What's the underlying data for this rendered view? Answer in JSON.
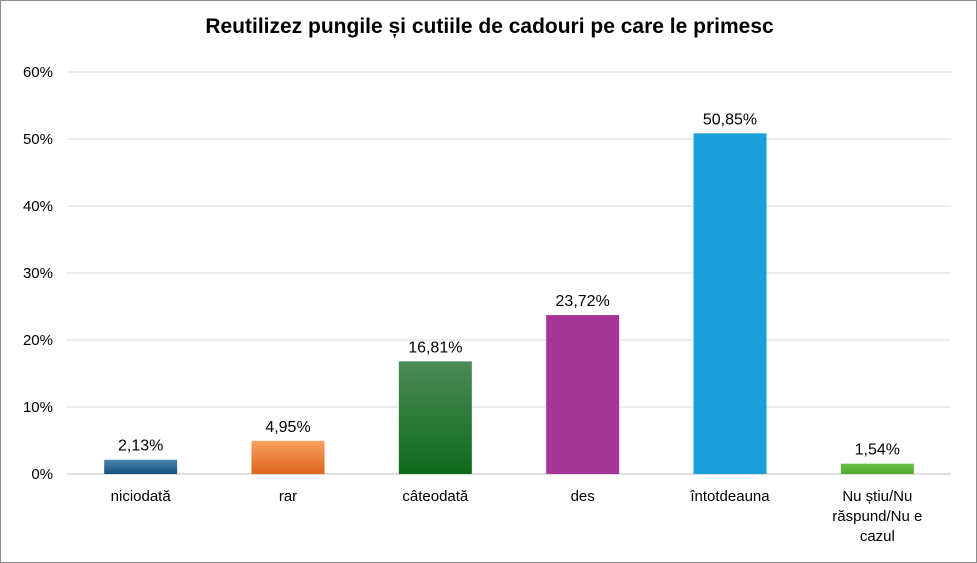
{
  "chart_data": {
    "type": "bar",
    "title": "Reutilizez pungile și cutiile de cadouri pe care le primesc",
    "categories": [
      "niciodată",
      "rar",
      "câteodată",
      "des",
      "întotdeauna",
      "Nu știu/Nu răspund/Nu e cazul"
    ],
    "category_lines": [
      [
        "niciodată"
      ],
      [
        "rar"
      ],
      [
        "câteodată"
      ],
      [
        "des"
      ],
      [
        "întotdeauna"
      ],
      [
        "Nu știu/Nu",
        "răspund/Nu e",
        "cazul"
      ]
    ],
    "values": [
      2.13,
      4.95,
      16.81,
      23.72,
      50.85,
      1.54
    ],
    "value_labels": [
      "2,13%",
      "4,95%",
      "16,81%",
      "23,72%",
      "50,85%",
      "1,54%"
    ],
    "ylim": [
      0,
      60
    ],
    "yticks": [
      0,
      10,
      20,
      30,
      40,
      50,
      60
    ],
    "ytick_labels": [
      "0%",
      "10%",
      "20%",
      "30%",
      "40%",
      "50%",
      "60%"
    ],
    "grid": true,
    "legend": "none",
    "colors": [
      [
        "#4a87b0",
        "#15507a"
      ],
      [
        "#f8a05f",
        "#e0631c"
      ],
      [
        "#4a8a56",
        "#0f6b1c"
      ],
      [
        "#a63598",
        "#a63598"
      ],
      [
        "#1aa0d9",
        "#1aa0d9"
      ],
      [
        "#6cc048",
        "#4ea82c"
      ]
    ]
  }
}
